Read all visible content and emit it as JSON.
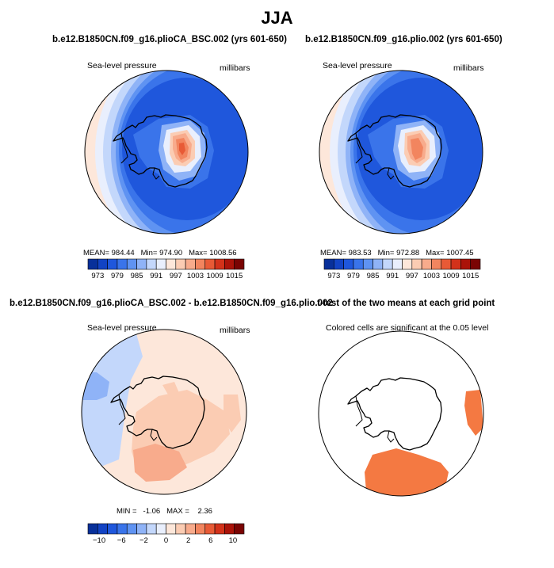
{
  "main_title": "JJA",
  "chart_data": [
    {
      "type": "heatmap",
      "projection": "polar-stereographic-south",
      "title": "b.e12.B1850CN.f09_g16.plioCA_BSC.002 (yrs 601-650)",
      "left_label": "Sea-level pressure",
      "right_label": "millibars",
      "stats": {
        "mean_label": "MEAN=",
        "mean": "984.44",
        "min_label": "Min=",
        "min": "974.90",
        "max_label": "Max=",
        "max": "1008.56"
      },
      "colorbar": {
        "colors": [
          "#08309a",
          "#1243c4",
          "#1f57dc",
          "#3a74ea",
          "#5f93f2",
          "#8fb3f7",
          "#c3d7fb",
          "#e9effd",
          "#fde7da",
          "#fbccb3",
          "#f8ab8c",
          "#f2855f",
          "#e85a36",
          "#d3321a",
          "#ab1309",
          "#7a0403"
        ],
        "ticks": [
          "973",
          "979",
          "985",
          "991",
          "997",
          "1003",
          "1009",
          "1015"
        ]
      }
    },
    {
      "type": "heatmap",
      "projection": "polar-stereographic-south",
      "title": "b.e12.B1850CN.f09_g16.plio.002 (yrs 601-650)",
      "left_label": "Sea-level pressure",
      "right_label": "millibars",
      "stats": {
        "mean_label": "MEAN=",
        "mean": "983.53",
        "min_label": "Min=",
        "min": "972.88",
        "max_label": "Max=",
        "max": "1007.45"
      },
      "colorbar": {
        "colors": [
          "#08309a",
          "#1243c4",
          "#1f57dc",
          "#3a74ea",
          "#5f93f2",
          "#8fb3f7",
          "#c3d7fb",
          "#e9effd",
          "#fde7da",
          "#fbccb3",
          "#f8ab8c",
          "#f2855f",
          "#e85a36",
          "#d3321a",
          "#ab1309",
          "#7a0403"
        ],
        "ticks": [
          "973",
          "979",
          "985",
          "991",
          "997",
          "1003",
          "1009",
          "1015"
        ]
      }
    },
    {
      "type": "heatmap",
      "projection": "polar-stereographic-south",
      "title": "b.e12.B1850CN.f09_g16.plioCA_BSC.002 - b.e12.B1850CN.f09_g16.plio.002",
      "left_label": "Sea-level pressure",
      "right_label": "millibars",
      "stats": {
        "min_label": "MIN =",
        "min": "-1.06",
        "max_label": "MAX =",
        "max": "2.36"
      },
      "colorbar": {
        "colors": [
          "#08309a",
          "#1243c4",
          "#1f57dc",
          "#3a74ea",
          "#5f93f2",
          "#8fb3f7",
          "#c3d7fb",
          "#e9effd",
          "#fde7da",
          "#fbccb3",
          "#f8ab8c",
          "#f2855f",
          "#e85a36",
          "#d3321a",
          "#ab1309",
          "#7a0403"
        ],
        "ticks": [
          "−10",
          "−6",
          "−2",
          "0",
          "2",
          "6",
          "10"
        ]
      }
    },
    {
      "type": "heatmap",
      "projection": "polar-stereographic-south",
      "title": "t-test of the two means at each grid point",
      "left_label": "Colored cells are significant at the 0.05 level",
      "significant_color": "#f47942"
    }
  ]
}
